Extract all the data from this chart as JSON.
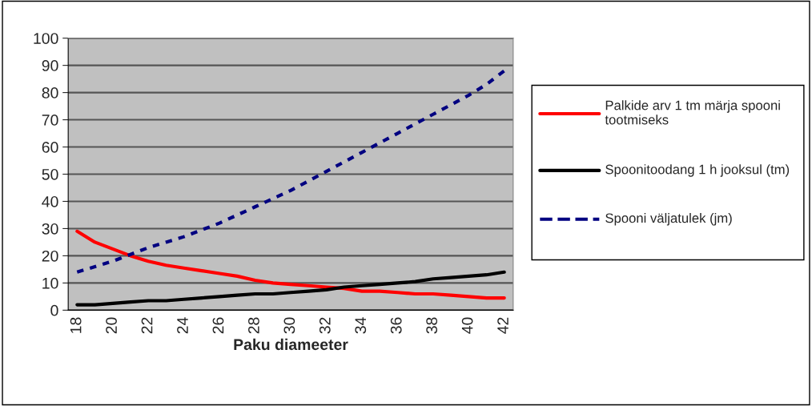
{
  "chart_data": {
    "type": "line",
    "xlabel": "Paku diameeter",
    "categories": [
      "18",
      null,
      "20",
      null,
      "22",
      null,
      "24",
      null,
      "26",
      null,
      "28",
      null,
      "30",
      null,
      "32",
      null,
      "34",
      null,
      "36",
      null,
      "38",
      null,
      "40",
      null,
      "42"
    ],
    "series": [
      {
        "name": "Palkide arv 1 tm märja spooni tootmiseks",
        "color": "#ff0000",
        "line_style": "solid",
        "values": [
          29,
          25,
          22.5,
          20,
          18,
          16.5,
          15.5,
          14.5,
          13.5,
          12.5,
          11,
          10,
          9.5,
          9,
          8.5,
          8,
          7,
          7,
          6.5,
          6,
          6,
          5.5,
          5,
          4.5,
          4.5
        ]
      },
      {
        "name": "Spoonitoodang 1 h jooksul (tm)",
        "color": "#000000",
        "line_style": "solid",
        "values": [
          2,
          2,
          2.5,
          3,
          3.5,
          3.5,
          4,
          4.5,
          5,
          5.5,
          6,
          6,
          6.5,
          7,
          7.5,
          8.5,
          9,
          9.5,
          10,
          10.5,
          11.5,
          12,
          12.5,
          13,
          14
        ]
      },
      {
        "name": "Spooni väljatulek (jm)",
        "color": "#000080",
        "line_style": "dashed",
        "values": [
          14,
          16,
          18,
          20.5,
          23,
          25,
          27,
          29.5,
          32,
          35,
          38,
          41,
          44,
          47.5,
          51,
          54.5,
          58,
          61.5,
          65,
          68.5,
          72,
          75.5,
          79,
          83,
          88
        ]
      }
    ],
    "ylim": [
      0,
      100
    ],
    "yticks": [
      0,
      10,
      20,
      30,
      40,
      50,
      60,
      70,
      80,
      90,
      100
    ],
    "grid": "y",
    "legend": "right"
  }
}
